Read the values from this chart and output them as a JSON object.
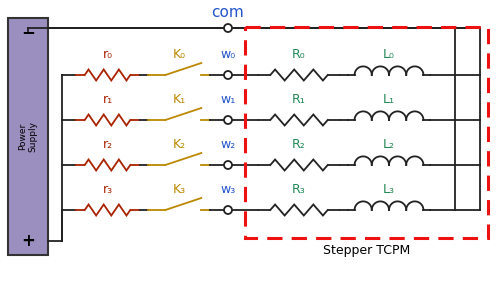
{
  "title": "Stepper TCPM",
  "bg_color": "#ffffff",
  "ps_color": "#9b8fc0",
  "ps_border_color": "#333333",
  "dashed_box_color": "#ee1111",
  "r_color": "#aa2200",
  "K_color": "#bb8800",
  "w_color": "#2255cc",
  "R_color": "#228855",
  "L_color": "#228855",
  "com_color": "#2255cc",
  "wire_color": "#222222",
  "row_labels_r": [
    "r₀",
    "r₁",
    "r₂",
    "r₃"
  ],
  "row_labels_K": [
    "K₀",
    "K₁",
    "K₂",
    "K₃"
  ],
  "row_labels_w": [
    "w₀",
    "w₁",
    "w₂",
    "w₃"
  ],
  "row_labels_R": [
    "R₀",
    "R₁",
    "R₂",
    "R₃"
  ],
  "row_labels_L": [
    "L₀",
    "L₁",
    "L₂",
    "L₃"
  ],
  "ps_minus_label": "−",
  "ps_plus_label": "+",
  "com_label": "com",
  "figw": 5.02,
  "figh": 2.88,
  "dpi": 100
}
